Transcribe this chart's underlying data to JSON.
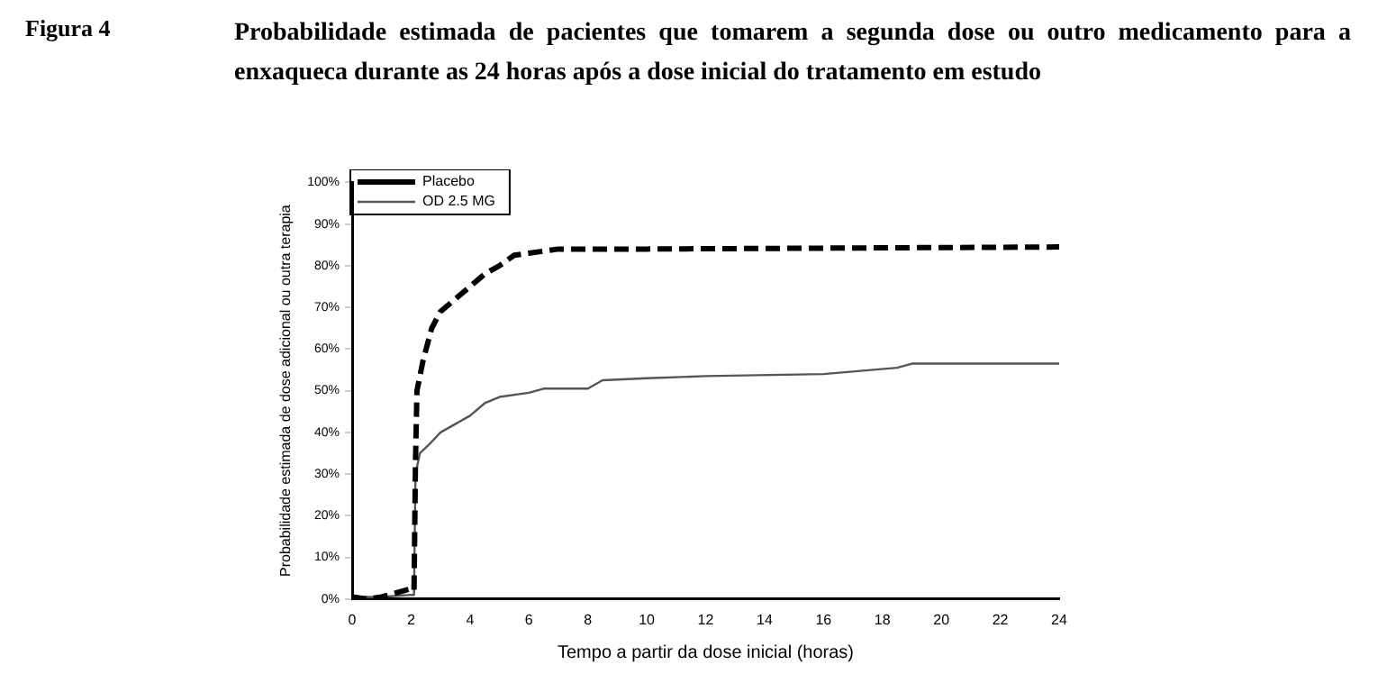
{
  "chart_data": {
    "type": "line",
    "title": "Probabilidade estimada de pacientes que tomarem a segunda dose ou outro medicamento para a enxaqueca durante as 24 horas após a dose inicial do tratamento em estudo",
    "annotations": [
      "Figura 4"
    ],
    "xlabel": "Tempo a partir da dose inicial (horas)",
    "ylabel": "Probabilidade estimada de dose adicional ou outra terapia",
    "xlim": [
      0,
      24
    ],
    "xticks": [
      0,
      2,
      4,
      6,
      8,
      10,
      12,
      14,
      16,
      18,
      20,
      22,
      24
    ],
    "ylim": [
      0,
      100
    ],
    "yticks": [
      {
        "value": 0,
        "label": "0%"
      },
      {
        "value": 10,
        "label": "10%"
      },
      {
        "value": 20,
        "label": "20%"
      },
      {
        "value": 30,
        "label": "30%"
      },
      {
        "value": 40,
        "label": "40%"
      },
      {
        "value": 50,
        "label": "50%"
      },
      {
        "value": 60,
        "label": "60%"
      },
      {
        "value": 70,
        "label": "70%"
      },
      {
        "value": 80,
        "label": "80%"
      },
      {
        "value": 90,
        "label": "90%"
      },
      {
        "value": 100,
        "label": "100%"
      }
    ],
    "grid": false,
    "legend": "top left",
    "marker": "none",
    "series": [
      {
        "name": "Placebo",
        "color": "#000000",
        "line_style": "dashed",
        "x": [
          0,
          0.5,
          1,
          1.5,
          2,
          2.1,
          2.15,
          2.2,
          2.4,
          2.7,
          3,
          3.5,
          4,
          4.5,
          5,
          5.5,
          6,
          7,
          8,
          10,
          24
        ],
        "values": [
          0.5,
          0,
          0.5,
          1.5,
          2.5,
          2,
          33,
          50,
          57,
          65,
          69,
          72,
          75,
          78,
          80,
          82.5,
          83,
          84,
          84,
          84,
          84.5
        ]
      },
      {
        "name": "OD 2.5 MG",
        "color": "#555555",
        "line_style": "solid",
        "x": [
          0,
          1,
          2,
          2.1,
          2.15,
          2.3,
          2.6,
          3,
          3.5,
          4,
          4.5,
          5,
          6,
          6.5,
          8,
          8.5,
          10,
          12,
          16,
          18.5,
          19,
          24
        ],
        "values": [
          0.5,
          0.5,
          1,
          1,
          30,
          35,
          37,
          40,
          42,
          44,
          47,
          48.5,
          49.5,
          50.5,
          50.5,
          52.5,
          53,
          53.5,
          54,
          55.5,
          56.5,
          56.5
        ]
      }
    ]
  }
}
